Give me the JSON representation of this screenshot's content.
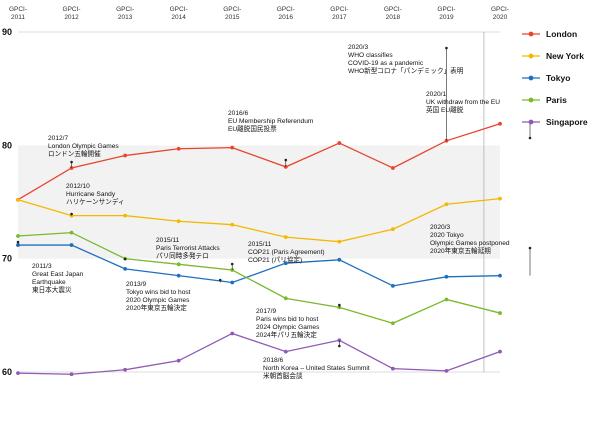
{
  "chart_data": {
    "type": "line",
    "x": [
      "GPCI-\n2011",
      "GPCI-\n2012",
      "GPCI-\n2013",
      "GPCI-\n2014",
      "GPCI-\n2015",
      "GPCI-\n2016",
      "GPCI-\n2017",
      "GPCI-\n2018",
      "GPCI-\n2019",
      "GPCI-\n2020"
    ],
    "ylim": [
      60,
      90
    ],
    "yticks": [
      60,
      70,
      80,
      90
    ],
    "series": [
      {
        "name": "London",
        "color": "#e8452c",
        "values": [
          75.2,
          78.0,
          79.1,
          79.7,
          79.8,
          78.1,
          80.2,
          78.0,
          80.4,
          81.9
        ]
      },
      {
        "name": "New York",
        "color": "#f5b800",
        "values": [
          75.2,
          73.8,
          73.8,
          73.3,
          73.0,
          71.9,
          71.5,
          72.6,
          74.8,
          75.3
        ]
      },
      {
        "name": "Tokyo",
        "color": "#1f6fbf",
        "values": [
          71.2,
          71.2,
          69.1,
          68.5,
          67.9,
          69.6,
          69.9,
          67.6,
          68.4,
          68.5
        ]
      },
      {
        "name": "Paris",
        "color": "#7bb82c",
        "values": [
          72.0,
          72.3,
          70.0,
          69.5,
          69.0,
          66.5,
          65.7,
          64.3,
          66.4,
          65.2
        ]
      },
      {
        "name": "Singapore",
        "color": "#8e5ab5",
        "values": [
          59.9,
          59.8,
          60.2,
          61.0,
          63.4,
          61.8,
          62.8,
          60.3,
          60.1,
          61.8
        ]
      }
    ],
    "legend": "right",
    "annotations": [
      {
        "lines": [
          "2012/7",
          "London Olympic Games",
          "ロンドン五輪開催"
        ]
      },
      {
        "lines": [
          "2012/10",
          "Hurricane Sandy",
          "ハリケーンサンディ"
        ]
      },
      {
        "lines": [
          "2011/3",
          "Great East Japan",
          "Earthquake",
          "東日本大震災"
        ]
      },
      {
        "lines": [
          "2013/9",
          "Tokyo wins bid to host",
          "2020 Olympic Games",
          "2020年東京五輪決定"
        ]
      },
      {
        "lines": [
          "2015/11",
          "Paris Terrorist Attacks",
          "パリ同時多発テロ"
        ]
      },
      {
        "lines": [
          "2015/11",
          "COP21 (Paris Agreement)",
          "COP21 (パリ協定)"
        ]
      },
      {
        "lines": [
          "2016/6",
          "EU Membership Referendum",
          "EU離脱国民投票"
        ]
      },
      {
        "lines": [
          "2017/9",
          "Paris wins bid to host",
          "2024 Olympic Games",
          "2024年パリ五輪決定"
        ]
      },
      {
        "lines": [
          "2018/6",
          "North Korea – United States Summit",
          "米朝首脳会談"
        ]
      },
      {
        "lines": [
          "2020/3",
          "WHO classifies",
          "COVID-19 as a pandemic",
          "WHO新型コロナ「パンデミック」表明"
        ]
      },
      {
        "lines": [
          "2020/1",
          "UK withdraw from the EU",
          "英国 EU離脱"
        ]
      },
      {
        "lines": [
          "2020/3",
          "2020 Tokyo",
          "Olympic Games postponed",
          "2020年東京五輪延期"
        ]
      }
    ]
  }
}
